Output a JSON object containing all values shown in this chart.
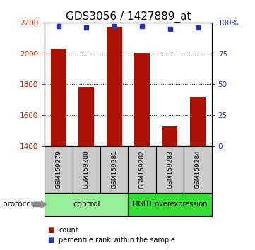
{
  "title": "GDS3056 / 1427889_at",
  "samples": [
    "GSM159279",
    "GSM159280",
    "GSM159281",
    "GSM159282",
    "GSM159283",
    "GSM159284"
  ],
  "counts": [
    2030,
    1785,
    2170,
    2005,
    1530,
    1720
  ],
  "percentile_ranks": [
    97,
    96,
    97,
    97,
    95,
    96
  ],
  "ylim_left": [
    1400,
    2200
  ],
  "ylim_right": [
    0,
    100
  ],
  "yticks_left": [
    1400,
    1600,
    1800,
    2000,
    2200
  ],
  "yticks_right": [
    0,
    25,
    50,
    75,
    100
  ],
  "ytick_labels_right": [
    "0",
    "25",
    "50",
    "75",
    "100%"
  ],
  "grid_values": [
    2000,
    1800,
    1600
  ],
  "bar_color": "#aa1100",
  "dot_color": "#2233bb",
  "bar_width": 0.55,
  "groups": [
    {
      "label": "control",
      "color": "#99ee99",
      "n": 3
    },
    {
      "label": "LIGHT overexpression",
      "color": "#33dd33",
      "n": 3
    }
  ],
  "protocol_label": "protocol",
  "legend_items": [
    {
      "label": "count",
      "color": "#aa1100"
    },
    {
      "label": "percentile rank within the sample",
      "color": "#2233bb"
    }
  ],
  "background_color": "#ffffff",
  "sample_box_color": "#cccccc",
  "title_fontsize": 11,
  "left_tick_color": "#cc2200",
  "right_tick_color": "#2233bb"
}
